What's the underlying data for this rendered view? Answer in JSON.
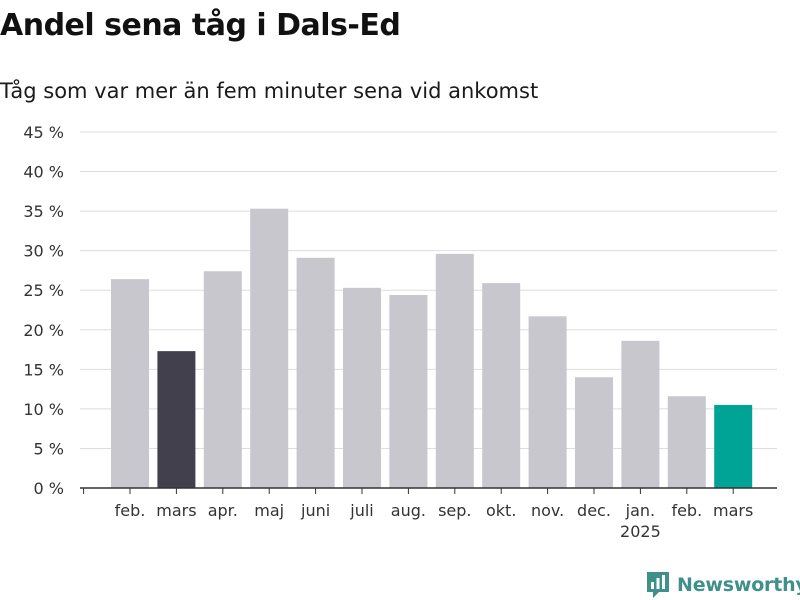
{
  "title": "Andel sena tåg i Dals-Ed",
  "subtitle": "Tåg som var mer än fem minuter sena vid ankomst",
  "brand": {
    "name": "Newsworthy",
    "icon": "newsworthy-logo-icon"
  },
  "colors": {
    "bar_default": "#c8c7cd",
    "bar_highlight_previous": "#42404d",
    "bar_highlight_current": "#00a497",
    "grid": "#dddddd",
    "axis": "#333333"
  },
  "chart_data": {
    "type": "bar",
    "title": "Andel sena tåg i Dals-Ed",
    "subtitle": "Tåg som var mer än fem minuter sena vid ankomst",
    "categories": [
      "feb.",
      "mars",
      "apr.",
      "maj",
      "juni",
      "juli",
      "aug.",
      "sep.",
      "okt.",
      "nov.",
      "dec.",
      "jan.",
      "feb.",
      "mars"
    ],
    "category_sublabels": [
      "",
      "",
      "",
      "",
      "",
      "",
      "",
      "",
      "",
      "",
      "",
      "2025",
      "",
      ""
    ],
    "values": [
      26.4,
      17.3,
      27.4,
      35.3,
      29.1,
      25.3,
      24.4,
      29.6,
      25.9,
      21.7,
      14.0,
      18.6,
      11.6,
      10.5
    ],
    "highlight": [
      "default",
      "previous",
      "default",
      "default",
      "default",
      "default",
      "default",
      "default",
      "default",
      "default",
      "default",
      "default",
      "default",
      "current"
    ],
    "yticks": [
      0,
      5,
      10,
      15,
      20,
      25,
      30,
      35,
      40,
      45
    ],
    "ytick_labels": [
      "0 %",
      "5 %",
      "10 %",
      "15 %",
      "20 %",
      "25 %",
      "30 %",
      "35 %",
      "40 %",
      "45 %"
    ],
    "ylim": [
      0,
      45
    ],
    "xlabel": "",
    "ylabel": "",
    "grid": true,
    "legend": "none"
  }
}
